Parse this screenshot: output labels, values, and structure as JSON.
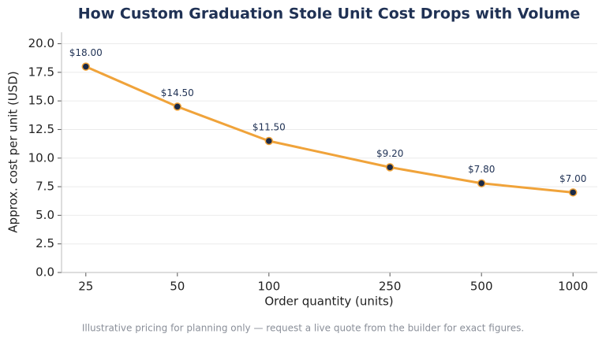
{
  "chart_data": {
    "type": "line",
    "title": "How Custom Graduation Stole Unit Cost Drops with Volume",
    "x_label": "Order quantity (units)",
    "y_label": "Approx. cost per unit (USD)",
    "footnote": "Illustrative pricing for planning only — request a live quote from the builder for exact figures.",
    "x": [
      25,
      50,
      100,
      250,
      500,
      1000
    ],
    "series": [
      {
        "name": "Unit cost",
        "color": "#f0a33a",
        "marker_color": "#1b2a47",
        "values": [
          18.0,
          14.5,
          11.5,
          9.2,
          7.8,
          7.0
        ],
        "value_labels": [
          "$18.00",
          "$14.50",
          "$11.50",
          "$9.20",
          "$7.80",
          "$7.00"
        ]
      }
    ],
    "xscale": "log",
    "xlim": [
      20.8,
      1202
    ],
    "xticks": [
      25,
      50,
      100,
      250,
      500,
      1000
    ],
    "ylim": [
      0,
      21
    ],
    "yticks": [
      {
        "value": 0,
        "label": "0.0"
      },
      {
        "value": 2.5,
        "label": "2.5"
      },
      {
        "value": 5,
        "label": "5.0"
      },
      {
        "value": 7.5,
        "label": "7.5"
      },
      {
        "value": 10,
        "label": "10.0"
      },
      {
        "value": 12.5,
        "label": "12.5"
      },
      {
        "value": 15,
        "label": "15.0"
      },
      {
        "value": 17.5,
        "label": "17.5"
      },
      {
        "value": 20,
        "label": "20.0"
      }
    ],
    "grid": true
  }
}
